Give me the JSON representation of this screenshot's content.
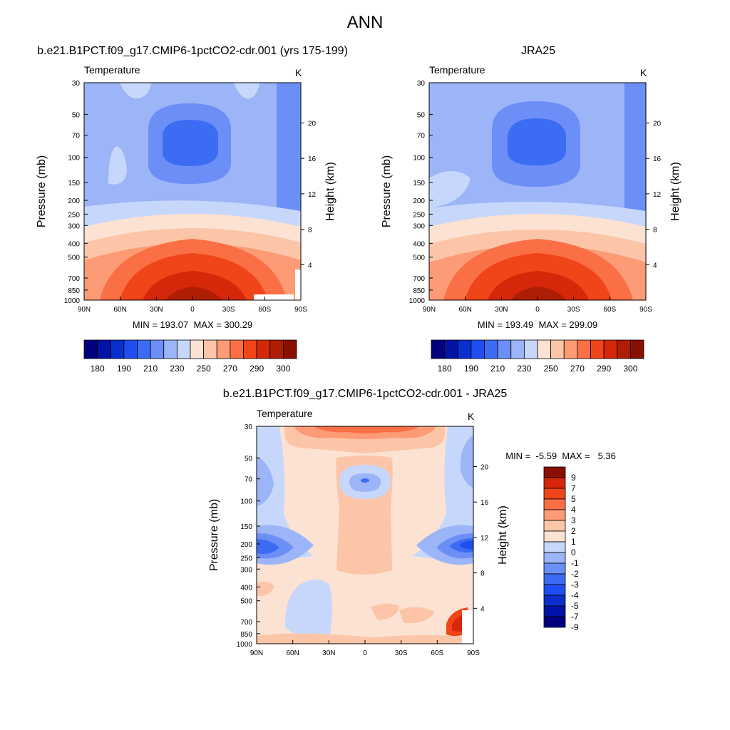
{
  "page_title": "ANN",
  "colors": {
    "seq": [
      "#02007f",
      "#0113a6",
      "#0a2fcc",
      "#1e4ef2",
      "#3d6cf4",
      "#6b8ff6",
      "#9cb4f8",
      "#c7d7fb",
      "#fce2d2",
      "#fcc5a8",
      "#fc9b75",
      "#fb6f46",
      "#f04419",
      "#d6270a",
      "#b01d05",
      "#890f00"
    ],
    "div": [
      "#02007f",
      "#0113a6",
      "#0a2fcc",
      "#1e4ef2",
      "#3d6cf4",
      "#6b8ff6",
      "#9cb4f8",
      "#c7d7fb",
      "#fce2d2",
      "#fcc5a8",
      "#fc9b75",
      "#fb6f46",
      "#f04419",
      "#d6270a",
      "#890f00"
    ]
  },
  "chart_data": [
    {
      "type": "heatmap",
      "title": "b.e21.B1PCT.f09_g17.CMIP6-1pctCO2-cdr.001 (yrs 175-199)",
      "variable": "Temperature",
      "units": "K",
      "ylabel": "Pressure (mb)",
      "y2label": "Height (km)",
      "x_ticks": [
        "90N",
        "60N",
        "30N",
        "0",
        "30S",
        "60S",
        "90S"
      ],
      "y_ticks": [
        "30",
        "50",
        "70",
        "100",
        "150",
        "200",
        "250",
        "300",
        "400",
        "500",
        "700",
        "850",
        "1000"
      ],
      "y2_ticks": [
        "20",
        "16",
        "12",
        "8",
        "4"
      ],
      "min_label": "MIN = 193.07",
      "max_label": "MAX = 300.29",
      "min": 193.07,
      "max": 300.29,
      "colorbar_labels": [
        "180",
        "190",
        "210",
        "230",
        "250",
        "270",
        "290",
        "300"
      ]
    },
    {
      "type": "heatmap",
      "title": "JRA25",
      "variable": "Temperature",
      "units": "K",
      "ylabel": "Pressure (mb)",
      "y2label": "Height (km)",
      "x_ticks": [
        "90N",
        "60N",
        "30N",
        "0",
        "30S",
        "60S",
        "90S"
      ],
      "y_ticks": [
        "30",
        "50",
        "70",
        "100",
        "150",
        "200",
        "250",
        "300",
        "400",
        "500",
        "700",
        "850",
        "1000"
      ],
      "y2_ticks": [
        "20",
        "16",
        "12",
        "8",
        "4"
      ],
      "min_label": "MIN = 193.49",
      "max_label": "MAX = 299.09",
      "min": 193.49,
      "max": 299.09,
      "colorbar_labels": [
        "180",
        "190",
        "210",
        "230",
        "250",
        "270",
        "290",
        "300"
      ]
    },
    {
      "type": "heatmap",
      "title": "b.e21.B1PCT.f09_g17.CMIP6-1pctCO2-cdr.001 - JRA25",
      "variable": "Temperature",
      "units": "K",
      "ylabel": "Pressure (mb)",
      "y2label": "Height (km)",
      "x_ticks": [
        "90N",
        "60N",
        "30N",
        "0",
        "30S",
        "60S",
        "90S"
      ],
      "y_ticks": [
        "30",
        "50",
        "70",
        "100",
        "150",
        "200",
        "250",
        "300",
        "400",
        "500",
        "700",
        "850",
        "1000"
      ],
      "y2_ticks": [
        "20",
        "16",
        "12",
        "8",
        "4"
      ],
      "min_label": "MIN =  -5.59",
      "max_label": "MAX =   5.36",
      "min": -5.59,
      "max": 5.36,
      "colorbar_labels": [
        "9",
        "7",
        "5",
        "4",
        "3",
        "2",
        "1",
        "0",
        "-1",
        "-2",
        "-3",
        "-4",
        "-5",
        "-7",
        "-9"
      ]
    }
  ]
}
